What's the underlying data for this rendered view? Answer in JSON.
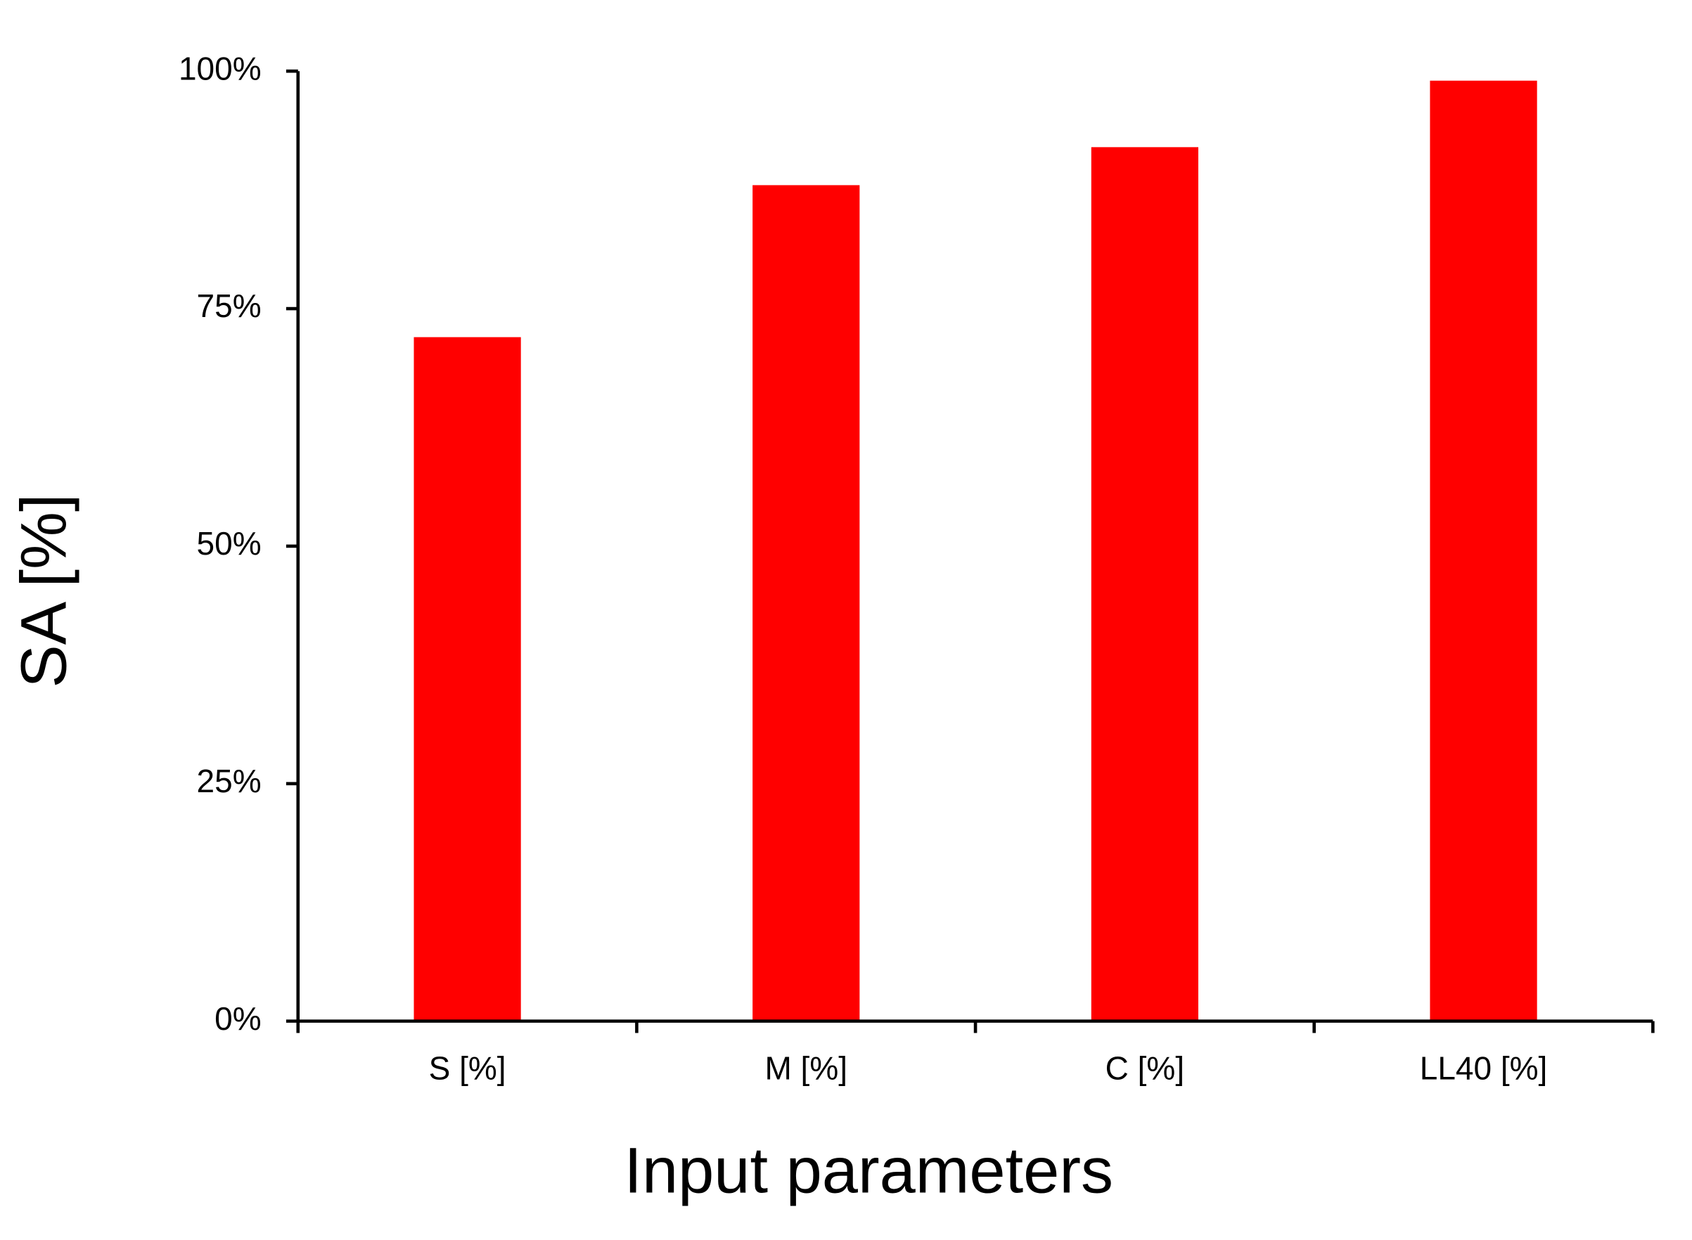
{
  "chart_data": {
    "type": "bar",
    "x_label": "Input parameters",
    "y_label": "SA [%]",
    "categories": [
      "S [%]",
      "M [%]",
      "C [%]",
      "LL40 [%]"
    ],
    "values": [
      72,
      88,
      92,
      99
    ],
    "color": "#ff0000",
    "ylim": [
      0,
      100
    ],
    "yticks": [
      {
        "value": 0,
        "label": "0%"
      },
      {
        "value": 25,
        "label": "25%"
      },
      {
        "value": 50,
        "label": "50%"
      },
      {
        "value": 75,
        "label": "75%"
      },
      {
        "value": 100,
        "label": "100%"
      }
    ],
    "grid": false
  }
}
